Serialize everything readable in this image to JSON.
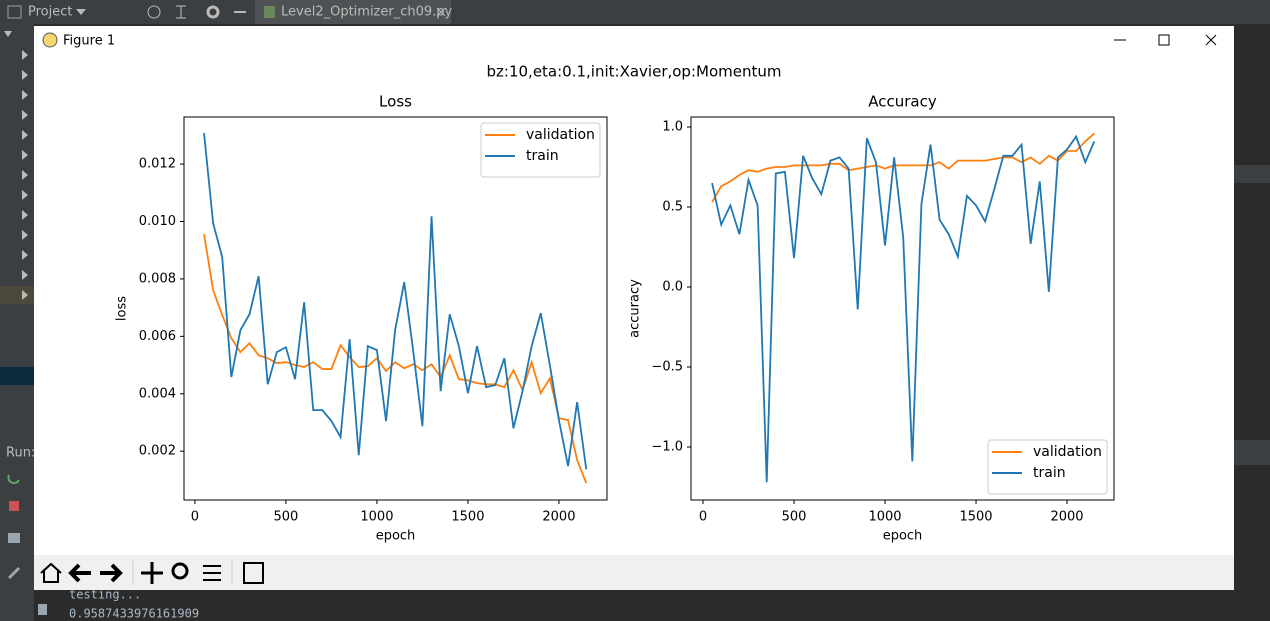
{
  "ide": {
    "project_label": "Project",
    "tab_label": "Level2_Optimizer_ch09.py",
    "run_label": "Run:",
    "console": [
      "testing...",
      "0.9587433976161909"
    ]
  },
  "window": {
    "title": "Figure 1",
    "figure_title": "bz:10,eta:0.1,init:Xavier,op:Momentum"
  },
  "chart_data": [
    {
      "type": "line",
      "title": "Loss",
      "x_label": "epoch",
      "y_label": "loss",
      "legend": "upper right",
      "grid": false,
      "x": [
        50,
        100,
        150,
        200,
        250,
        300,
        350,
        400,
        450,
        500,
        550,
        600,
        650,
        700,
        750,
        800,
        850,
        900,
        950,
        1000,
        1050,
        1100,
        1150,
        1200,
        1250,
        1300,
        1350,
        1400,
        1450,
        1500,
        1550,
        1600,
        1650,
        1700,
        1750,
        1800,
        1850,
        1900,
        1950,
        2000,
        2050,
        2100,
        2150
      ],
      "xlim": [
        -60,
        2264
      ],
      "xticks": [
        0,
        500,
        1000,
        1500,
        2000
      ],
      "ylim": [
        0.0003,
        0.01364
      ],
      "yticks": [
        0.002,
        0.004,
        0.006,
        0.008,
        {
          "value": 0.01,
          "label": "0.010"
        },
        0.012
      ],
      "series": [
        {
          "name": "validation",
          "color": "#ff7f0e",
          "values": [
            0.00956,
            0.00761,
            0.00674,
            0.00594,
            0.00545,
            0.00576,
            0.00534,
            0.00524,
            0.00507,
            0.0051,
            0.005,
            0.00493,
            0.0051,
            0.00486,
            0.00486,
            0.00569,
            0.00528,
            0.00493,
            0.00496,
            0.00524,
            0.00479,
            0.0051,
            0.00489,
            0.00503,
            0.00482,
            0.00503,
            0.00458,
            0.00534,
            0.00451,
            0.00447,
            0.00437,
            0.00433,
            0.00433,
            0.00423,
            0.00482,
            0.00413,
            0.0051,
            0.00402,
            0.00454,
            0.00315,
            0.00308,
            0.00169,
            0.00089
          ]
        },
        {
          "name": "train",
          "color": "#1f77b4",
          "values": [
            0.01308,
            0.00994,
            0.00876,
            0.00458,
            0.00622,
            0.00677,
            0.0081,
            0.00433,
            0.00545,
            0.00562,
            0.00451,
            0.00719,
            0.00343,
            0.00343,
            0.00305,
            0.00249,
            0.0059,
            0.00186,
            0.00566,
            0.00552,
            0.00305,
            0.00622,
            0.00789,
            0.00545,
            0.00287,
            0.01018,
            0.00409,
            0.00677,
            0.00566,
            0.00402,
            0.00566,
            0.00423,
            0.0043,
            0.00524,
            0.0028,
            0.00409,
            0.00566,
            0.00681,
            0.005,
            0.00308,
            0.00148,
            0.00371,
            0.00137
          ]
        }
      ]
    },
    {
      "type": "line",
      "title": "Accuracy",
      "x_label": "epoch",
      "y_label": "accuracy",
      "legend": "lower right",
      "grid": false,
      "x": [
        50,
        100,
        150,
        200,
        250,
        300,
        350,
        400,
        450,
        500,
        550,
        600,
        650,
        700,
        750,
        800,
        850,
        900,
        950,
        1000,
        1050,
        1100,
        1150,
        1200,
        1250,
        1300,
        1350,
        1400,
        1450,
        1500,
        1550,
        1600,
        1650,
        1700,
        1750,
        1800,
        1850,
        1900,
        1950,
        2000,
        2050,
        2100,
        2150
      ],
      "xlim": [
        -66,
        2258
      ],
      "xticks": [
        0,
        500,
        1000,
        1500,
        2000
      ],
      "ylim": [
        -1.331,
        1.0625
      ],
      "yticks": [
        {
          "value": -1.0,
          "label": "−1.0"
        },
        {
          "value": -0.5,
          "label": "−0.5"
        },
        {
          "value": 0.0,
          "label": "0.0"
        },
        0.5,
        {
          "value": 1.0,
          "label": "1.0"
        }
      ],
      "series": [
        {
          "name": "validation",
          "color": "#ff7f0e",
          "values": [
            0.53,
            0.63,
            0.66,
            0.7,
            0.73,
            0.72,
            0.74,
            0.75,
            0.75,
            0.76,
            0.76,
            0.76,
            0.76,
            0.77,
            0.77,
            0.73,
            0.74,
            0.75,
            0.76,
            0.74,
            0.76,
            0.76,
            0.76,
            0.76,
            0.76,
            0.78,
            0.74,
            0.79,
            0.79,
            0.79,
            0.79,
            0.8,
            0.81,
            0.81,
            0.78,
            0.81,
            0.77,
            0.82,
            0.79,
            0.85,
            0.85,
            0.91,
            0.96
          ]
        },
        {
          "name": "train",
          "color": "#1f77b4",
          "values": [
            0.65,
            0.39,
            0.51,
            0.33,
            0.67,
            0.51,
            -1.22,
            0.71,
            0.72,
            0.18,
            0.82,
            0.68,
            0.58,
            0.79,
            0.81,
            0.74,
            -0.14,
            0.93,
            0.78,
            0.26,
            0.81,
            0.31,
            -1.09,
            0.52,
            0.89,
            0.42,
            0.33,
            0.19,
            0.57,
            0.51,
            0.41,
            0.61,
            0.82,
            0.82,
            0.89,
            0.27,
            0.66,
            -0.03,
            0.81,
            0.86,
            0.94,
            0.78,
            0.91
          ]
        }
      ]
    }
  ]
}
